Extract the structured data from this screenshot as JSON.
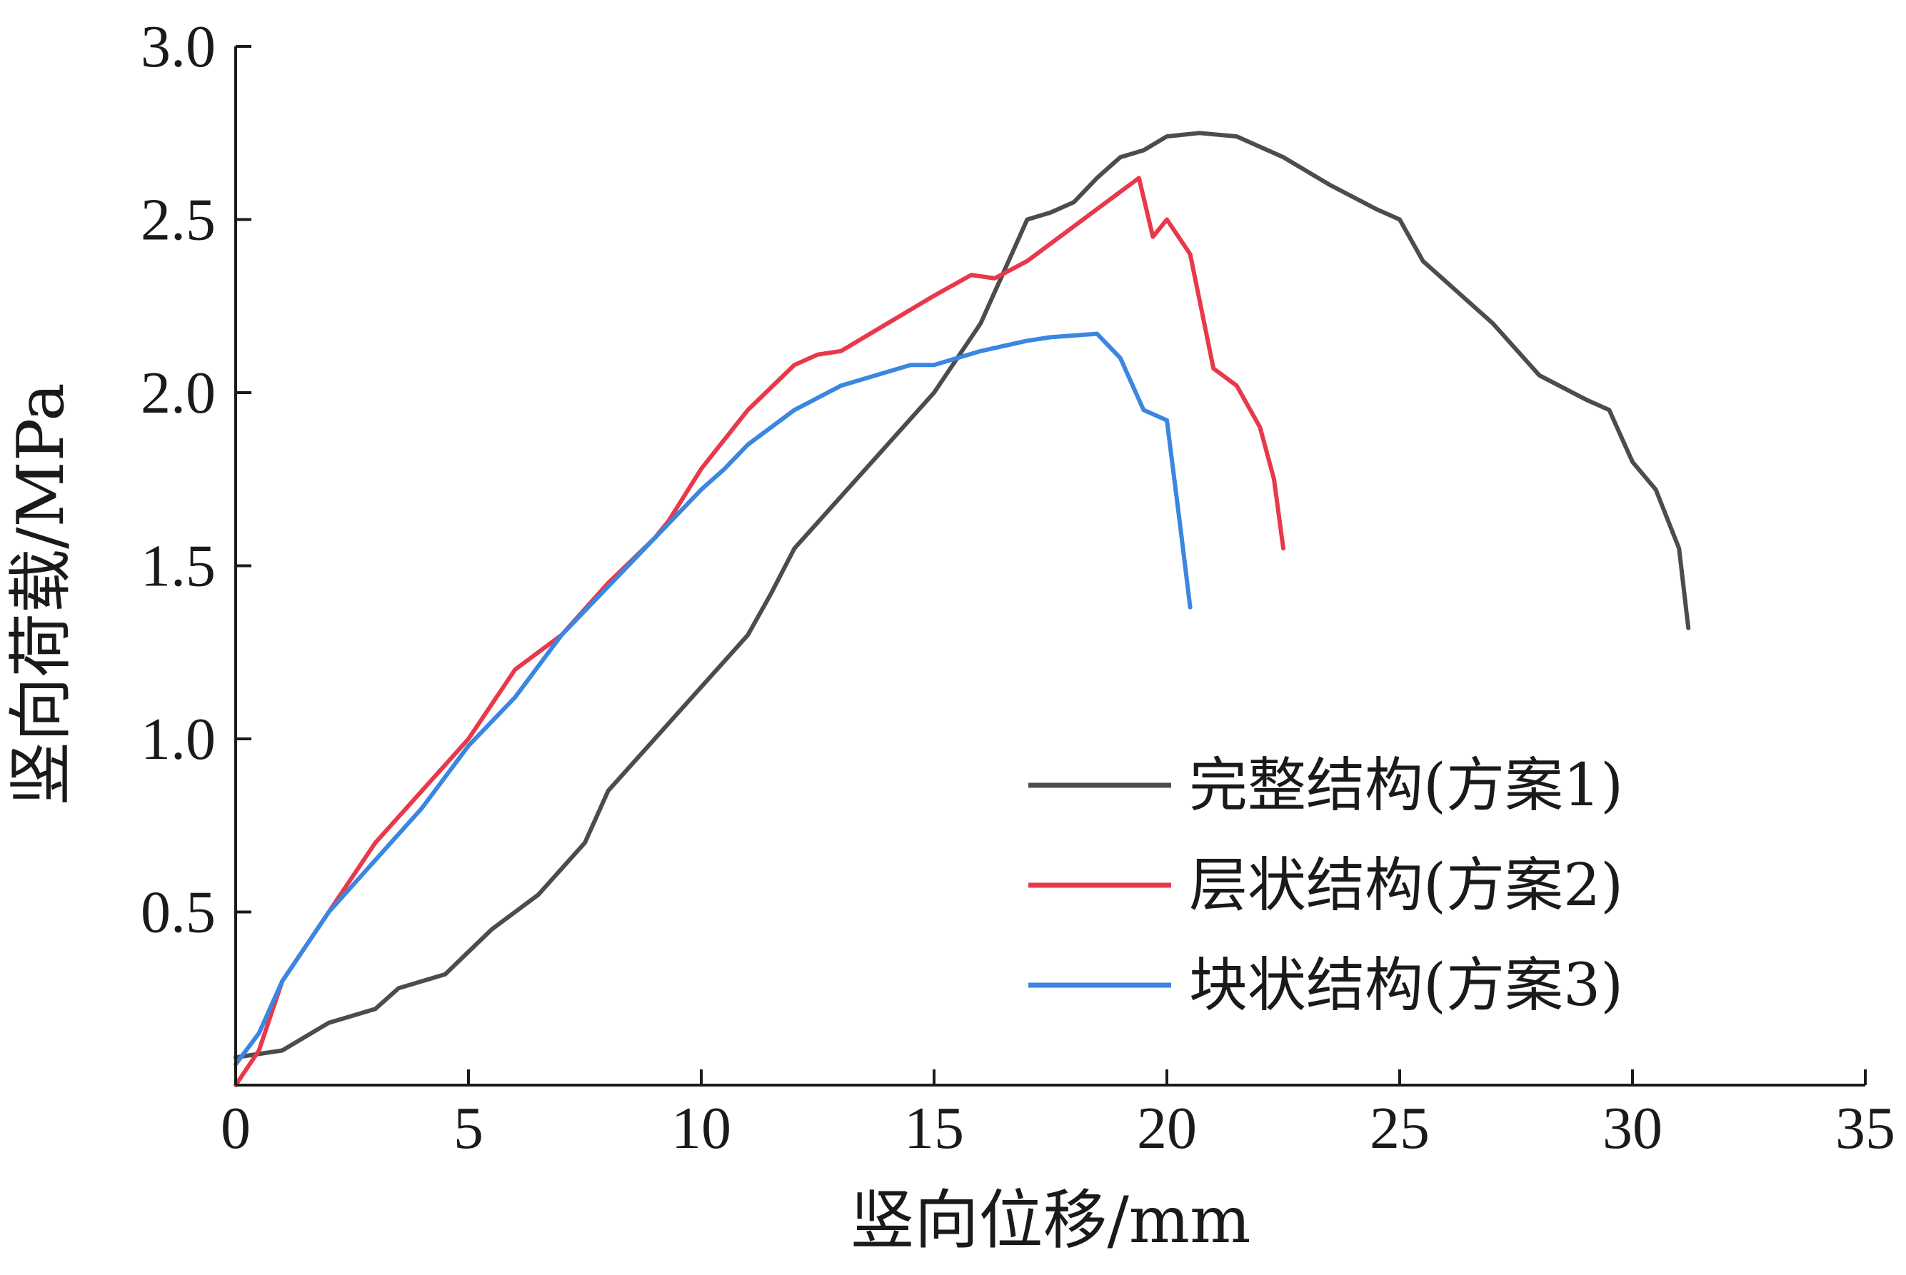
{
  "chart_data": {
    "type": "line",
    "title": "",
    "xlabel": "竖向位移/mm",
    "ylabel": "竖向荷载/MPa",
    "xlim": [
      0,
      35
    ],
    "ylim": [
      0,
      3.0
    ],
    "xticks": [
      0,
      5,
      10,
      15,
      20,
      25,
      30,
      35
    ],
    "yticks": [
      0.5,
      1.0,
      1.5,
      2.0,
      2.5,
      3.0
    ],
    "xtick_labels": [
      "0",
      "5",
      "10",
      "15",
      "20",
      "25",
      "30",
      "35"
    ],
    "ytick_labels": [
      "0.5",
      "1.0",
      "1.5",
      "2.0",
      "2.5",
      "3.0"
    ],
    "grid": false,
    "legend_position": "bottom-right",
    "series": [
      {
        "name": "完整结构(方案1)",
        "color": "#4a4d4e",
        "x": [
          0,
          1.0,
          2.0,
          3.0,
          3.5,
          4.5,
          5.5,
          6.5,
          7.5,
          8.0,
          9.0,
          10.0,
          11.0,
          11.5,
          12.0,
          13.0,
          14.0,
          15.0,
          15.5,
          16.0,
          16.5,
          17.0,
          17.5,
          18.0,
          18.5,
          19.0,
          19.5,
          20.0,
          20.7,
          21.5,
          22.5,
          23.5,
          24.5,
          25.0,
          25.5,
          26.0,
          27.0,
          28.0,
          29.0,
          29.5,
          30.0,
          30.5,
          31.0,
          31.2
        ],
        "values": [
          0.08,
          0.1,
          0.18,
          0.22,
          0.28,
          0.32,
          0.45,
          0.55,
          0.7,
          0.85,
          1.0,
          1.15,
          1.3,
          1.42,
          1.55,
          1.7,
          1.85,
          2.0,
          2.1,
          2.2,
          2.35,
          2.5,
          2.52,
          2.55,
          2.62,
          2.68,
          2.7,
          2.74,
          2.75,
          2.74,
          2.68,
          2.6,
          2.53,
          2.5,
          2.38,
          2.32,
          2.2,
          2.05,
          1.98,
          1.95,
          1.8,
          1.72,
          1.55,
          1.32
        ]
      },
      {
        "name": "层状结构(方案2)",
        "color": "#e8394a",
        "x": [
          0,
          0.5,
          1.0,
          2.0,
          3.0,
          4.0,
          5.0,
          6.0,
          7.0,
          8.0,
          9.0,
          9.3,
          10.0,
          11.0,
          12.0,
          12.5,
          13.0,
          14.0,
          15.0,
          15.8,
          16.3,
          17.0,
          18.0,
          19.0,
          19.4,
          19.7,
          20.0,
          20.5,
          21.0,
          21.5,
          22.0,
          22.3,
          22.5
        ],
        "values": [
          0.0,
          0.1,
          0.3,
          0.5,
          0.7,
          0.85,
          1.0,
          1.2,
          1.3,
          1.45,
          1.58,
          1.63,
          1.78,
          1.95,
          2.08,
          2.11,
          2.12,
          2.2,
          2.28,
          2.34,
          2.33,
          2.38,
          2.48,
          2.58,
          2.62,
          2.45,
          2.5,
          2.4,
          2.07,
          2.02,
          1.9,
          1.75,
          1.55
        ]
      },
      {
        "name": "块状结构(方案3)",
        "color": "#3a86e0",
        "x": [
          0,
          0.5,
          1.0,
          2.0,
          3.0,
          4.0,
          5.0,
          6.0,
          7.0,
          8.0,
          9.0,
          10.0,
          10.5,
          11.0,
          12.0,
          13.0,
          14.0,
          14.5,
          15.0,
          16.0,
          17.0,
          17.5,
          18.5,
          19.0,
          19.5,
          20.0,
          20.3,
          20.5
        ],
        "values": [
          0.06,
          0.15,
          0.3,
          0.5,
          0.65,
          0.8,
          0.98,
          1.12,
          1.3,
          1.44,
          1.58,
          1.72,
          1.78,
          1.85,
          1.95,
          2.02,
          2.06,
          2.08,
          2.08,
          2.12,
          2.15,
          2.16,
          2.17,
          2.1,
          1.95,
          1.92,
          1.6,
          1.38
        ]
      }
    ]
  }
}
